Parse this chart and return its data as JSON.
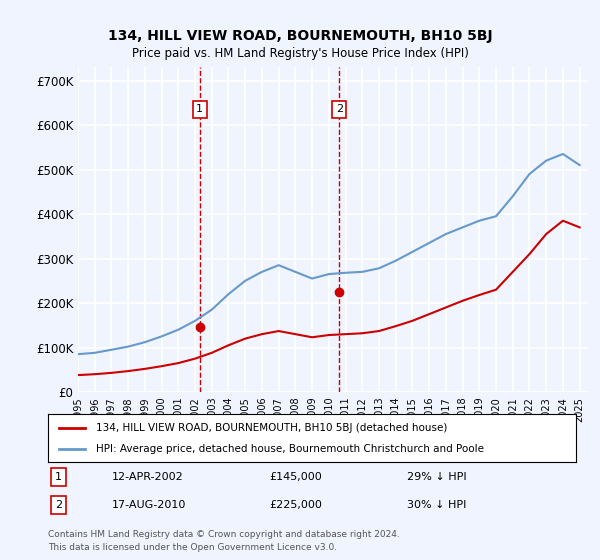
{
  "title": "134, HILL VIEW ROAD, BOURNEMOUTH, BH10 5BJ",
  "subtitle": "Price paid vs. HM Land Registry's House Price Index (HPI)",
  "ylabel_ticks": [
    "£0",
    "£100K",
    "£200K",
    "£300K",
    "£400K",
    "£500K",
    "£600K",
    "£700K"
  ],
  "ytick_values": [
    0,
    100000,
    200000,
    300000,
    400000,
    500000,
    600000,
    700000
  ],
  "ylim": [
    0,
    730000
  ],
  "xlim_start": 1995.0,
  "xlim_end": 2025.5,
  "transaction1_date": 2002.28,
  "transaction1_price": 145000,
  "transaction1_label": "1",
  "transaction1_text": "12-APR-2002",
  "transaction1_price_text": "£145,000",
  "transaction1_pct_text": "29% ↓ HPI",
  "transaction2_date": 2010.63,
  "transaction2_price": 225000,
  "transaction2_label": "2",
  "transaction2_text": "17-AUG-2010",
  "transaction2_price_text": "£225,000",
  "transaction2_pct_text": "30% ↓ HPI",
  "legend_line1": "134, HILL VIEW ROAD, BOURNEMOUTH, BH10 5BJ (detached house)",
  "legend_line2": "HPI: Average price, detached house, Bournemouth Christchurch and Poole",
  "footer_line1": "Contains HM Land Registry data © Crown copyright and database right 2024.",
  "footer_line2": "This data is licensed under the Open Government Licence v3.0.",
  "red_color": "#cc0000",
  "blue_color": "#6699cc",
  "dashed_color": "#cc0000",
  "background_color": "#f0f4ff",
  "plot_bg_color": "#f0f4ff",
  "grid_color": "#ffffff",
  "hpi_years": [
    1995,
    1996,
    1997,
    1998,
    1999,
    2000,
    2001,
    2002,
    2003,
    2004,
    2005,
    2006,
    2007,
    2008,
    2009,
    2010,
    2011,
    2012,
    2013,
    2014,
    2015,
    2016,
    2017,
    2018,
    2019,
    2020,
    2021,
    2022,
    2023,
    2024,
    2025
  ],
  "hpi_values": [
    85000,
    88000,
    95000,
    102000,
    112000,
    125000,
    140000,
    160000,
    185000,
    220000,
    250000,
    270000,
    285000,
    270000,
    255000,
    265000,
    268000,
    270000,
    278000,
    295000,
    315000,
    335000,
    355000,
    370000,
    385000,
    395000,
    440000,
    490000,
    520000,
    535000,
    510000
  ],
  "red_years": [
    1995,
    1996,
    1997,
    1998,
    1999,
    2000,
    2001,
    2002,
    2003,
    2004,
    2005,
    2006,
    2007,
    2008,
    2009,
    2010,
    2011,
    2012,
    2013,
    2014,
    2015,
    2016,
    2017,
    2018,
    2019,
    2020,
    2021,
    2022,
    2023,
    2024,
    2025
  ],
  "red_values": [
    38000,
    40000,
    43000,
    47000,
    52000,
    58000,
    65000,
    75000,
    88000,
    105000,
    120000,
    130000,
    137000,
    130000,
    123000,
    128000,
    130000,
    132000,
    137000,
    148000,
    160000,
    175000,
    190000,
    205000,
    218000,
    230000,
    270000,
    310000,
    355000,
    385000,
    370000
  ]
}
